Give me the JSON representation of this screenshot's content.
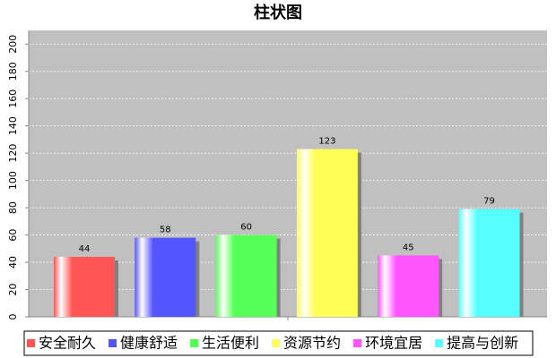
{
  "chart_data": {
    "type": "bar",
    "title": "柱状图",
    "categories": [
      null
    ],
    "series": [
      {
        "name": "安全耐久",
        "color": "#ff5555",
        "values": [
          44
        ]
      },
      {
        "name": "健康舒适",
        "color": "#5555ff",
        "values": [
          58
        ]
      },
      {
        "name": "生活便利",
        "color": "#55ff55",
        "values": [
          60
        ]
      },
      {
        "name": "资源节约",
        "color": "#ffff55",
        "values": [
          123
        ]
      },
      {
        "name": "环境宜居",
        "color": "#ff55ff",
        "values": [
          45
        ]
      },
      {
        "name": "提高与创新",
        "color": "#55ffff",
        "values": [
          79
        ]
      }
    ],
    "ylim": [
      0,
      210
    ],
    "yticks": [
      0,
      20,
      40,
      60,
      80,
      100,
      120,
      140,
      160,
      180,
      200
    ],
    "grid": true,
    "legend": "bottom"
  }
}
